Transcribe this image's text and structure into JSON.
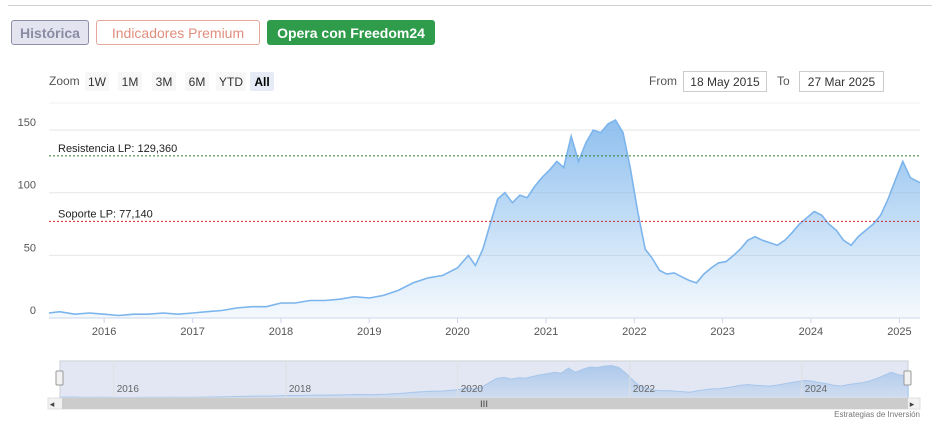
{
  "tabs": {
    "historica": "Histórica",
    "premium": "Indicadores Premium",
    "freedom": "Opera con Freedom24"
  },
  "range_selector": {
    "zoom_label": "Zoom",
    "buttons": [
      "1W",
      "1M",
      "3M",
      "6M",
      "YTD",
      "All"
    ],
    "active": "All",
    "from_label": "From",
    "from_value": "18 May 2015",
    "to_label": "To",
    "to_value": "27 Mar 2025"
  },
  "credits": "Estrategias de Inversión",
  "colors": {
    "line": "#7cb5ec",
    "area_top": "#7cb5ec",
    "resistance": "#2e7d32",
    "support": "#c62828",
    "navigator_mask": "#cbd3ea",
    "tab_green": "#2e9c4b"
  },
  "chart_data": {
    "type": "area",
    "title": "",
    "xlabel": "",
    "ylabel": "",
    "xlim": [
      "2015-05-18",
      "2025-03-27"
    ],
    "ylim": [
      0,
      170
    ],
    "y_ticks": [
      0,
      50,
      100,
      150
    ],
    "x_ticks": [
      "2016",
      "2017",
      "2018",
      "2019",
      "2020",
      "2021",
      "2022",
      "2023",
      "2024",
      "2025"
    ],
    "navigator_ticks": [
      "2016",
      "2018",
      "2020",
      "2022",
      "2024"
    ],
    "grid": true,
    "legend": "none",
    "annotations": [
      {
        "type": "hline",
        "label": "Resistencia LP: 129,360",
        "value": 129.36,
        "style": "dashed",
        "color": "resistance"
      },
      {
        "type": "hline",
        "label": "Soporte LP: 77,140",
        "value": 77.14,
        "style": "dashed",
        "color": "support"
      }
    ],
    "series": [
      {
        "x": [
          "2015-05-18",
          "2015-07-01",
          "2015-09-01",
          "2015-11-01",
          "2016-01-01",
          "2016-03-01",
          "2016-05-01",
          "2016-07-01",
          "2016-09-01",
          "2016-11-01",
          "2017-01-01",
          "2017-03-01",
          "2017-05-01",
          "2017-07-01",
          "2017-09-01",
          "2017-11-01",
          "2018-01-01",
          "2018-03-01",
          "2018-05-01",
          "2018-07-01",
          "2018-09-01",
          "2018-11-01",
          "2019-01-01",
          "2019-03-01",
          "2019-05-01",
          "2019-07-01",
          "2019-09-01",
          "2019-11-01",
          "2020-01-01",
          "2020-02-15",
          "2020-03-15",
          "2020-04-15",
          "2020-05-15",
          "2020-06-15",
          "2020-07-15",
          "2020-08-15",
          "2020-09-15",
          "2020-10-15",
          "2020-11-15",
          "2020-12-15",
          "2021-01-15",
          "2021-02-15",
          "2021-03-15",
          "2021-04-15",
          "2021-05-15",
          "2021-06-15",
          "2021-07-15",
          "2021-08-15",
          "2021-09-15",
          "2021-10-15",
          "2021-11-15",
          "2021-12-15",
          "2022-01-15",
          "2022-02-15",
          "2022-03-15",
          "2022-04-15",
          "2022-05-15",
          "2022-06-15",
          "2022-07-15",
          "2022-08-15",
          "2022-09-15",
          "2022-10-15",
          "2022-11-15",
          "2022-12-15",
          "2023-01-15",
          "2023-02-15",
          "2023-03-15",
          "2023-04-15",
          "2023-05-15",
          "2023-06-15",
          "2023-07-15",
          "2023-08-15",
          "2023-09-15",
          "2023-10-15",
          "2023-11-15",
          "2023-12-15",
          "2024-01-15",
          "2024-02-15",
          "2024-03-15",
          "2024-04-15",
          "2024-05-15",
          "2024-06-15",
          "2024-07-15",
          "2024-08-15",
          "2024-09-15",
          "2024-10-15",
          "2024-11-15",
          "2024-12-15",
          "2025-01-15",
          "2025-02-15",
          "2025-03-27"
        ],
        "values": [
          4,
          5,
          3,
          4,
          3,
          2,
          3,
          3,
          4,
          3,
          4,
          5,
          6,
          8,
          9,
          9,
          12,
          12,
          14,
          14,
          15,
          17,
          16,
          18,
          22,
          28,
          32,
          34,
          40,
          50,
          42,
          55,
          75,
          95,
          100,
          92,
          98,
          96,
          105,
          112,
          118,
          125,
          120,
          145,
          125,
          140,
          150,
          148,
          155,
          158,
          148,
          120,
          85,
          55,
          48,
          38,
          35,
          36,
          33,
          30,
          28,
          35,
          40,
          44,
          45,
          50,
          55,
          62,
          65,
          62,
          60,
          58,
          62,
          68,
          75,
          80,
          85,
          82,
          75,
          70,
          62,
          58,
          65,
          70,
          75,
          82,
          95,
          110,
          125,
          112,
          108
        ]
      }
    ]
  }
}
